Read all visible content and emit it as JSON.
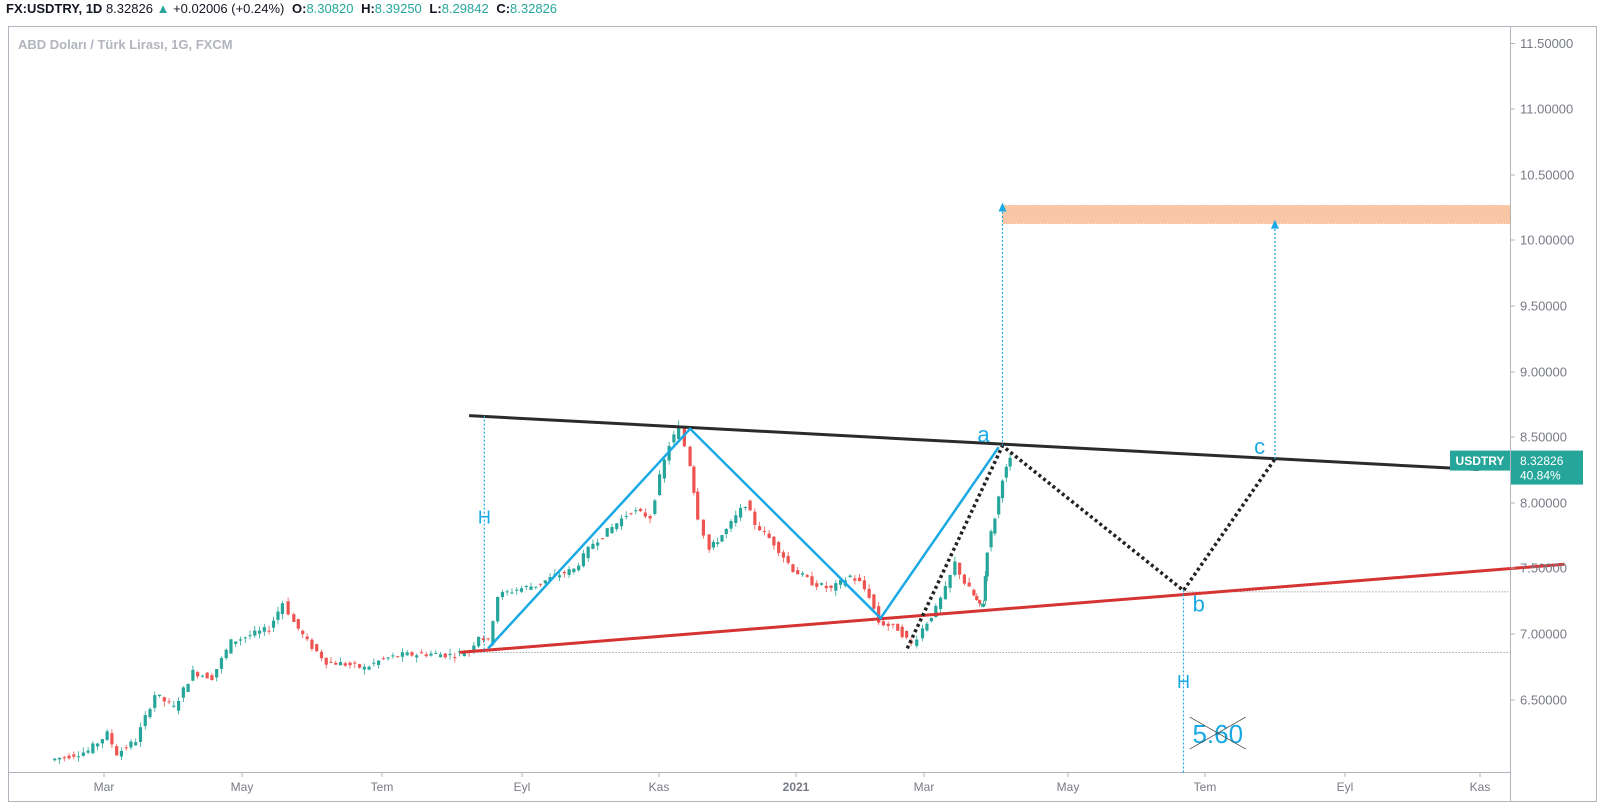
{
  "header": {
    "symbol": "FX:USDTRY, 1D",
    "last": "8.32826",
    "arrow": "▲",
    "change": "+0.02006 (+0.24%)",
    "o_label": "O:",
    "o": "8.30820",
    "h_label": "H:",
    "h": "8.39250",
    "l_label": "L:",
    "l": "8.29842",
    "c_label": "C:",
    "c": "8.32826"
  },
  "chart_data": {
    "type": "line",
    "title": "ABD Doları / Türk Lirası, 1G, FXCM",
    "x_ticks": [
      "Mar",
      "May",
      "Tem",
      "Eyl",
      "Kas",
      "2021",
      "Mar",
      "May",
      "Tem",
      "Eyl",
      "Kas"
    ],
    "y_ticks": [
      "11.50000",
      "11.00000",
      "10.50000",
      "10.00000",
      "9.50000",
      "9.00000",
      "8.50000",
      "8.00000",
      "7.50000",
      "7.00000",
      "6.50000"
    ],
    "ylim": [
      6.05,
      11.62
    ],
    "price_label": {
      "symbol": "USDTRY",
      "value": "8.32826",
      "pct": "40.84%"
    },
    "price_path": [
      [
        0.0,
        6.05
      ],
      [
        2.0,
        6.12
      ],
      [
        3.0,
        6.25
      ],
      [
        3.5,
        6.1
      ],
      [
        4.5,
        6.2
      ],
      [
        5.5,
        6.55
      ],
      [
        6.5,
        6.45
      ],
      [
        7.5,
        6.72
      ],
      [
        8.5,
        6.68
      ],
      [
        9.5,
        6.95
      ],
      [
        10.5,
        7.0
      ],
      [
        11.5,
        7.05
      ],
      [
        12.2,
        7.25
      ],
      [
        12.8,
        7.1
      ],
      [
        13.5,
        6.95
      ],
      [
        14.5,
        6.8
      ],
      [
        15.5,
        6.78
      ],
      [
        16.5,
        6.75
      ],
      [
        17.5,
        6.82
      ],
      [
        18.5,
        6.85
      ],
      [
        20.0,
        6.86
      ],
      [
        21.0,
        6.85
      ],
      [
        22.0,
        6.88
      ],
      [
        22.5,
        7.0
      ],
      [
        23.0,
        6.95
      ],
      [
        23.5,
        7.3
      ],
      [
        24.5,
        7.35
      ],
      [
        25.5,
        7.38
      ],
      [
        26.5,
        7.45
      ],
      [
        27.5,
        7.5
      ],
      [
        28.5,
        7.7
      ],
      [
        29.5,
        7.82
      ],
      [
        30.5,
        7.95
      ],
      [
        31.5,
        7.9
      ],
      [
        32.0,
        8.2
      ],
      [
        32.5,
        8.45
      ],
      [
        33.0,
        8.58
      ],
      [
        33.6,
        8.3
      ],
      [
        34.0,
        7.9
      ],
      [
        34.6,
        7.65
      ],
      [
        35.5,
        7.8
      ],
      [
        36.5,
        8.0
      ],
      [
        37.0,
        7.85
      ],
      [
        38.0,
        7.7
      ],
      [
        39.0,
        7.5
      ],
      [
        40.0,
        7.4
      ],
      [
        41.0,
        7.35
      ],
      [
        42.0,
        7.45
      ],
      [
        42.5,
        7.4
      ],
      [
        43.0,
        7.3
      ],
      [
        43.5,
        7.1
      ],
      [
        44.5,
        7.05
      ],
      [
        45.2,
        6.93
      ],
      [
        45.8,
        7.05
      ],
      [
        46.5,
        7.2
      ],
      [
        47.0,
        7.35
      ],
      [
        47.5,
        7.55
      ],
      [
        48.0,
        7.4
      ],
      [
        48.5,
        7.3
      ],
      [
        48.8,
        7.22
      ],
      [
        49.0,
        7.25
      ],
      [
        49.2,
        7.65
      ],
      [
        49.6,
        7.9
      ],
      [
        50.0,
        8.2
      ],
      [
        50.4,
        8.33
      ]
    ],
    "series": [
      {
        "name": "resistance",
        "color": "#2b2b2b",
        "points": [
          [
            22.0,
            8.67
          ],
          [
            75.0,
            8.26
          ]
        ]
      },
      {
        "name": "support",
        "color": "#d63333",
        "points": [
          [
            21.5,
            6.87
          ],
          [
            79.5,
            7.54
          ]
        ]
      }
    ],
    "pattern_lines": {
      "color": "#19a9e4",
      "points": [
        [
          23.0,
          6.9
        ],
        [
          33.6,
          8.57
        ],
        [
          43.6,
          7.13
        ],
        [
          49.8,
          8.43
        ]
      ]
    },
    "projection": {
      "color": "#222222",
      "points": [
        [
          45.0,
          6.9
        ],
        [
          50.0,
          8.44
        ],
        [
          59.5,
          7.34
        ],
        [
          64.3,
          8.34
        ]
      ]
    },
    "measure_lines": [
      {
        "label": "H",
        "x": 22.8,
        "from": 8.67,
        "to": 6.87,
        "label_y": 7.85
      },
      {
        "label": "H",
        "x": 59.5,
        "from": 7.34,
        "to": 5.95,
        "label_y": 6.6
      }
    ],
    "targets": [
      {
        "x": 50.0,
        "from": 8.44,
        "to": 10.26
      },
      {
        "x": 64.3,
        "from": 8.34,
        "to": 10.13
      }
    ],
    "target_zone": {
      "from": 10.13,
      "to": 10.27,
      "color": "#f7b98f"
    },
    "horizontal_refs": [
      6.87,
      7.33
    ],
    "annotations": [
      {
        "text": "a",
        "x": 49.0,
        "y": 8.47
      },
      {
        "text": "b",
        "x": 60.3,
        "y": 7.18
      },
      {
        "text": "c",
        "x": 63.5,
        "y": 8.38
      },
      {
        "text": "5.60",
        "x": 61.3,
        "y": 6.18,
        "crossed": true
      }
    ]
  }
}
